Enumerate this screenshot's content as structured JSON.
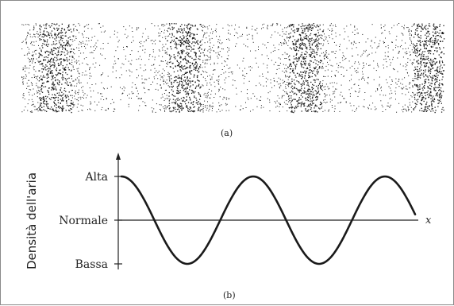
{
  "panel_a": {
    "caption": "(a)"
  },
  "panel_b": {
    "caption": "(b)",
    "y_axis_title": "Densità dell'aria",
    "x_axis_label": "x",
    "levels": [
      "Alta",
      "Normale",
      "Bassa"
    ]
  },
  "colors": {
    "ink": "#1a1a1a",
    "frame": "#8a8a8a"
  }
}
